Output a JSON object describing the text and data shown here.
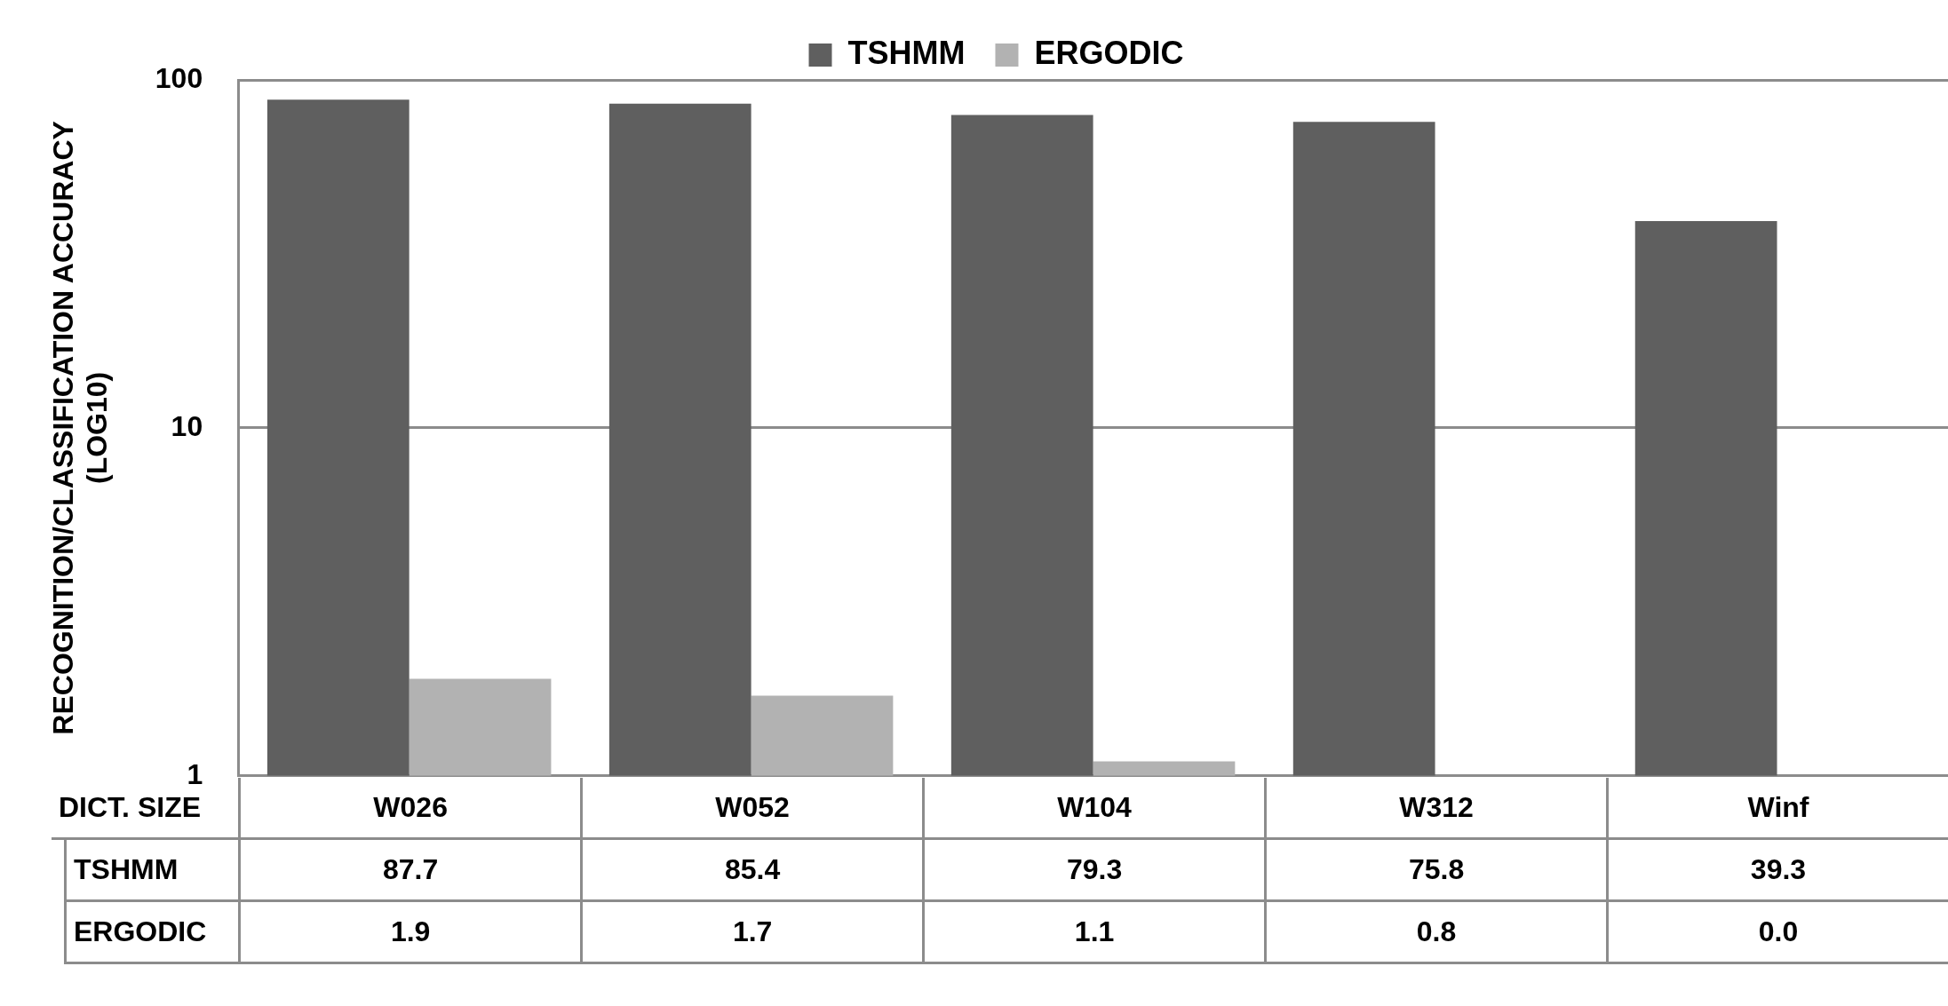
{
  "chart_data": {
    "type": "bar",
    "ylabel": "RECOGNITION/CLASSIFICATION ACCURACY\n(LOG10)",
    "xlabel": "DICT. SIZE",
    "categories": [
      "W026",
      "W052",
      "W104",
      "W312",
      "Winf"
    ],
    "series": [
      {
        "name": "TSHMM",
        "color": "#5f5f5f",
        "values": [
          87.7,
          85.4,
          79.3,
          75.8,
          39.3
        ],
        "value_labels": [
          "87.7",
          "85.4",
          "79.3",
          "75.8",
          "39.3"
        ]
      },
      {
        "name": "ERGODIC",
        "color": "#b2b2b2",
        "values": [
          1.9,
          1.7,
          1.1,
          null,
          null
        ],
        "value_labels": [
          "1.9",
          "1.7",
          "1.1",
          "0.8",
          "0.0"
        ]
      }
    ],
    "log": true,
    "ylim": [
      1,
      100
    ],
    "yticks": [
      {
        "value": 1,
        "label": "1"
      },
      {
        "value": 10,
        "label": "10"
      },
      100
    ],
    "grid": "y",
    "legend": "top"
  }
}
